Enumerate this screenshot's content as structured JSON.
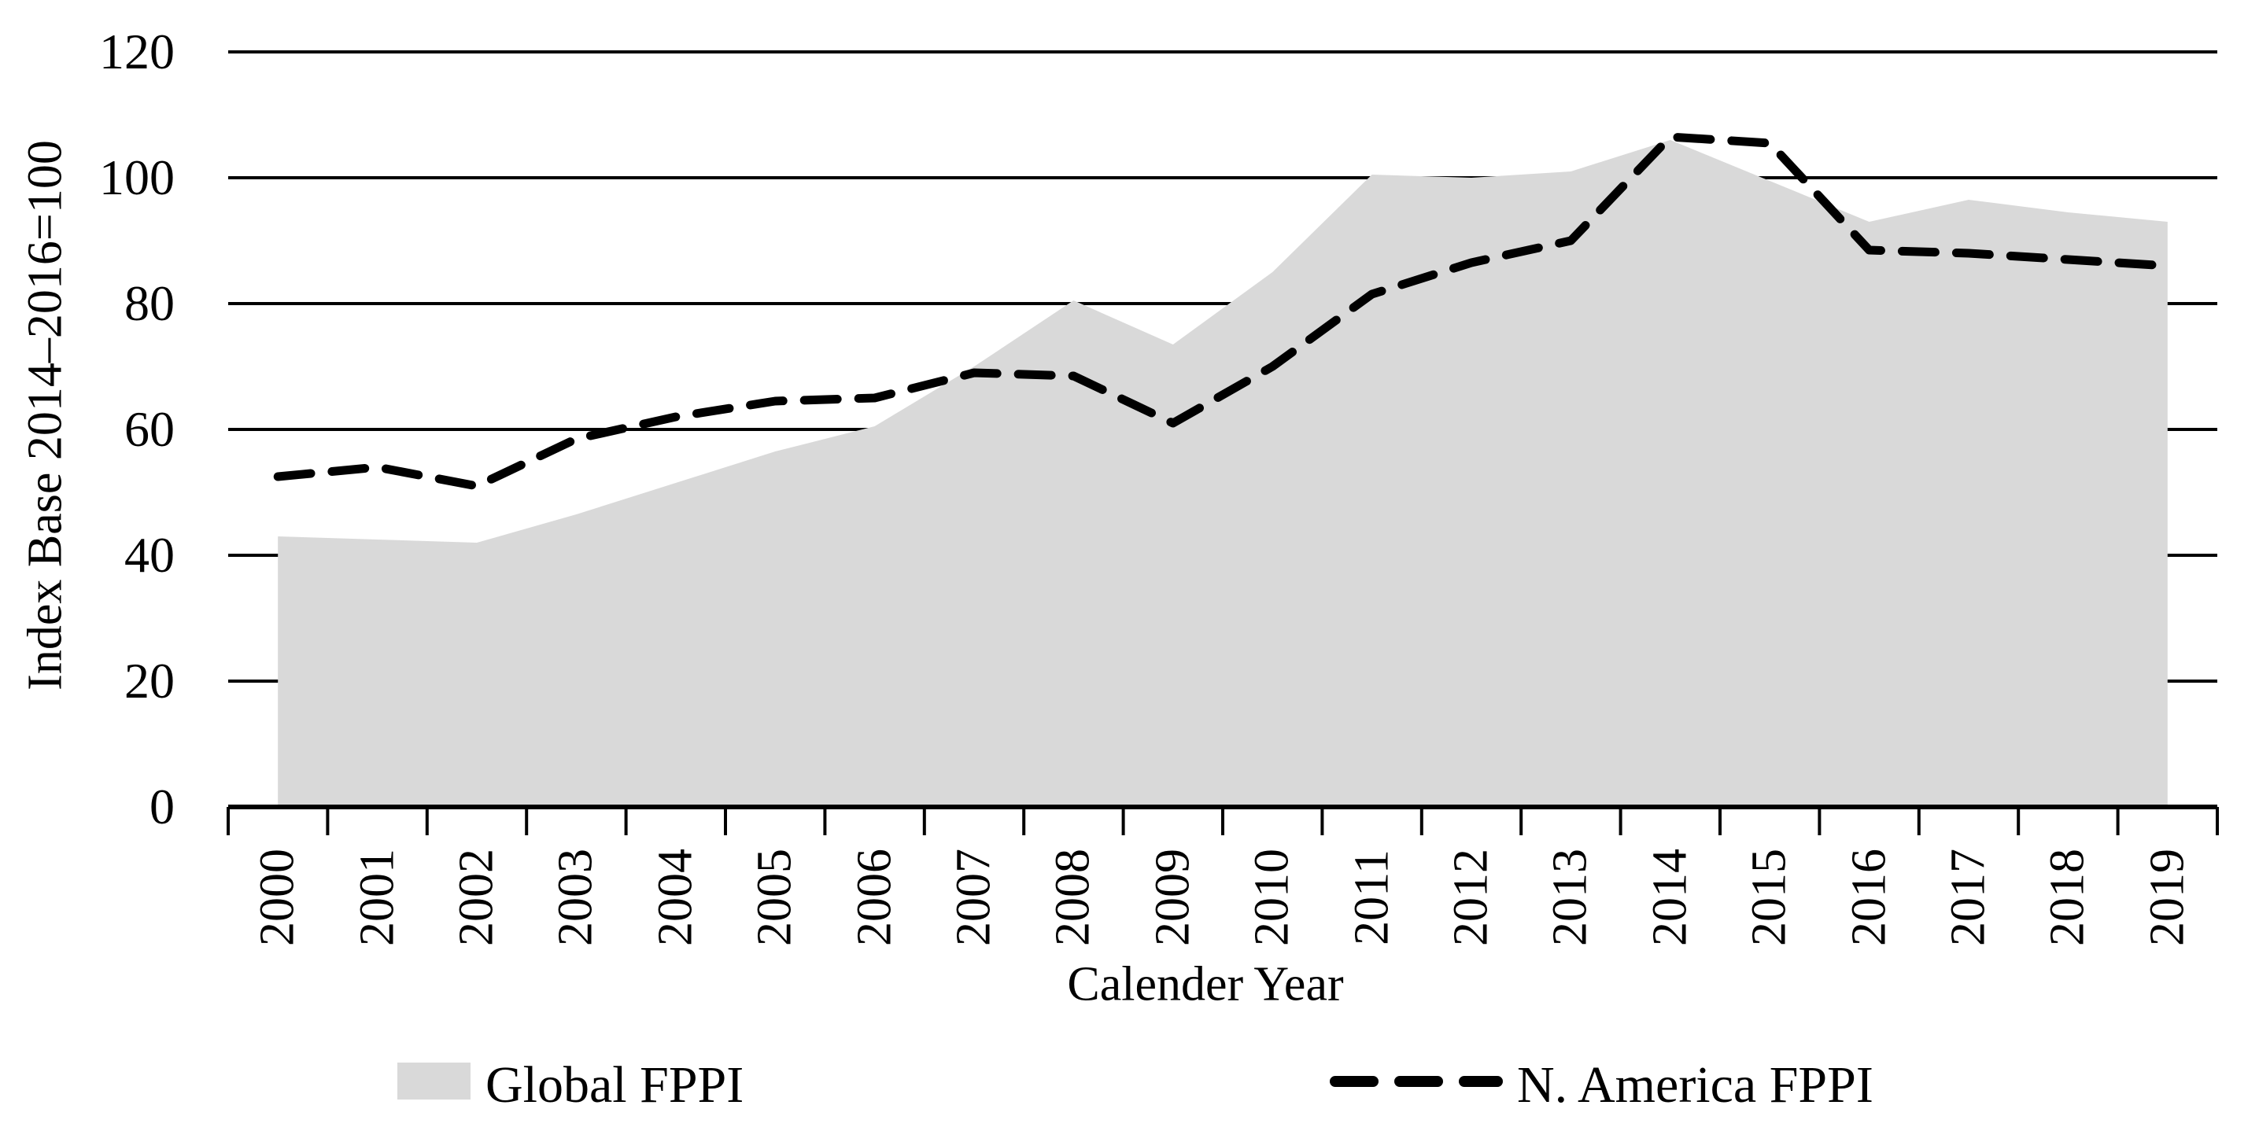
{
  "chart_data": {
    "type": "area",
    "subtype": "area-with-dashed-line-overlay",
    "title": "",
    "xlabel": "Calender Year",
    "ylabel": "Index Base 2014–2016=100",
    "categories": [
      "2000",
      "2001",
      "2002",
      "2003",
      "2004",
      "2005",
      "2006",
      "2007",
      "2008",
      "2009",
      "2010",
      "2011",
      "2012",
      "2013",
      "2014",
      "2015",
      "2016",
      "2017",
      "2018",
      "2019"
    ],
    "series": [
      {
        "name": "Global FPPI",
        "type": "area",
        "color": "#d9d9d9",
        "values": [
          43,
          42.5,
          42,
          46.5,
          51.5,
          56.5,
          60.5,
          70,
          80.5,
          73.5,
          85,
          100.5,
          100,
          101,
          106,
          99.5,
          93,
          96.5,
          94.5,
          93
        ]
      },
      {
        "name": "N. America FPPI",
        "type": "line",
        "style": "dashed",
        "color": "#000000",
        "values": [
          52.5,
          54,
          51,
          58.5,
          62,
          64.5,
          65,
          69,
          68.5,
          61,
          70,
          81.5,
          86.5,
          90,
          106.5,
          105.5,
          88.5,
          88,
          87,
          86
        ]
      }
    ],
    "ylim": [
      0,
      120
    ],
    "y_ticks": [
      0,
      20,
      40,
      60,
      80,
      100,
      120
    ],
    "grid": "horizontal",
    "legend_position": "bottom-center",
    "gridline_color": "#000000",
    "background_color": "#ffffff"
  },
  "legend": {
    "global_label": "Global FPPI",
    "namerica_label": "N. America FPPI"
  }
}
